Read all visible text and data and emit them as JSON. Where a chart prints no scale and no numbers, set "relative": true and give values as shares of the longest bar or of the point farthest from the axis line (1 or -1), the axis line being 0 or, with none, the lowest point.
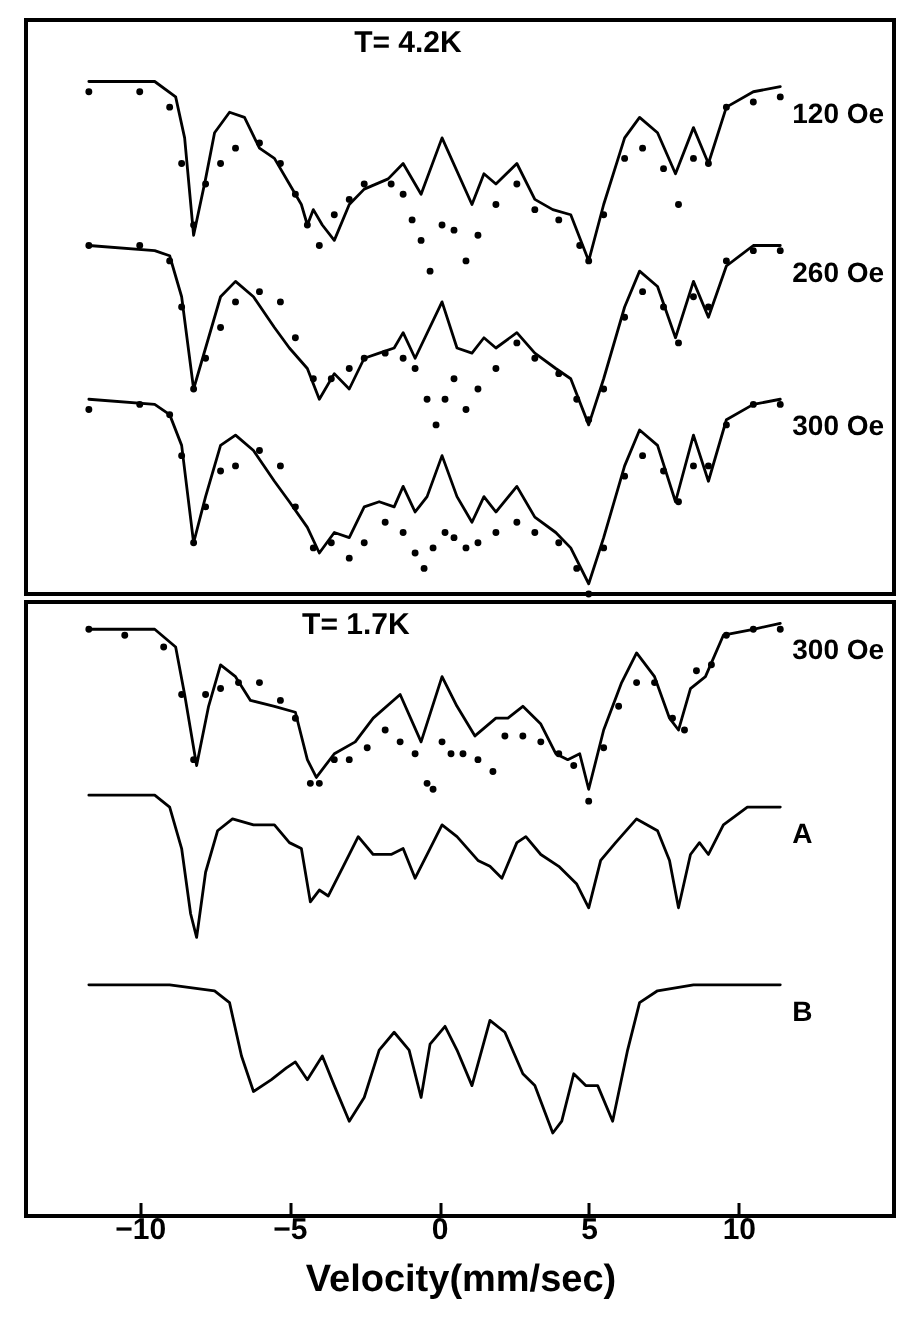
{
  "chart_data": [
    {
      "type": "line",
      "relative": true,
      "xlim": [
        -13.8,
        15.2
      ],
      "tick_labels": false,
      "annotations": [
        "T= 4.2K"
      ],
      "series": [
        {
          "name": "120 Oe",
          "color": "#000000",
          "x": [
            -11.7,
            -9.5,
            -8.8,
            -8.5,
            -8.2,
            -7.8,
            -7.5,
            -7.0,
            -6.5,
            -6.0,
            -5.5,
            -5.0,
            -4.6,
            -4.4,
            -4.2,
            -3.9,
            -3.5,
            -3.0,
            -2.5,
            -1.7,
            -1.2,
            -0.6,
            0.1,
            1.1,
            1.5,
            1.9,
            2.6,
            3.2,
            3.8,
            4.4,
            5.0,
            5.5,
            6.2,
            6.7,
            7.3,
            7.9,
            8.5,
            9.0,
            9.6,
            10.5,
            11.4
          ],
          "values": [
            1.0,
            1.0,
            0.97,
            0.89,
            0.7,
            0.81,
            0.9,
            0.94,
            0.93,
            0.87,
            0.85,
            0.8,
            0.76,
            0.72,
            0.75,
            0.72,
            0.69,
            0.76,
            0.79,
            0.81,
            0.84,
            0.78,
            0.89,
            0.76,
            0.82,
            0.8,
            0.84,
            0.77,
            0.75,
            0.74,
            0.65,
            0.76,
            0.89,
            0.93,
            0.9,
            0.82,
            0.91,
            0.84,
            0.95,
            0.98,
            0.99
          ]
        },
        {
          "type": "scatter",
          "color": "#000000",
          "x": [
            -11.7,
            -10,
            -9,
            -8.6,
            -8.2,
            -7.8,
            -7.3,
            -6.8,
            -6.0,
            -5.3,
            -4.8,
            -4.4,
            -4.0,
            -3.5,
            -3.0,
            -2.5,
            -1.6,
            -1.2,
            -0.9,
            -0.6,
            -0.3,
            0.1,
            0.5,
            0.9,
            1.3,
            1.9,
            2.6,
            3.2,
            4.0,
            4.7,
            5.0,
            5.5,
            6.2,
            6.8,
            7.5,
            8.0,
            8.5,
            9.0,
            9.6,
            10.5,
            11.4
          ],
          "values": [
            0.98,
            0.98,
            0.95,
            0.84,
            0.72,
            0.8,
            0.84,
            0.87,
            0.88,
            0.84,
            0.78,
            0.72,
            0.68,
            0.74,
            0.77,
            0.8,
            0.8,
            0.78,
            0.73,
            0.69,
            0.63,
            0.72,
            0.71,
            0.65,
            0.7,
            0.76,
            0.8,
            0.75,
            0.73,
            0.68,
            0.65,
            0.74,
            0.85,
            0.87,
            0.83,
            0.76,
            0.85,
            0.84,
            0.95,
            0.96,
            0.97
          ]
        },
        {
          "name": "260 Oe",
          "color": "#000000",
          "x": [
            -11.7,
            -9.5,
            -9,
            -8.6,
            -8.2,
            -7.8,
            -7.3,
            -6.8,
            -6.2,
            -5.5,
            -5.0,
            -4.4,
            -4.0,
            -3.5,
            -3.0,
            -2.5,
            -2.0,
            -1.5,
            -1.2,
            -0.8,
            0.1,
            0.6,
            1.1,
            1.5,
            1.9,
            2.6,
            3.2,
            3.9,
            4.4,
            5.0,
            5.5,
            6.2,
            6.7,
            7.3,
            7.9,
            8.5,
            9.0,
            9.6,
            10.5,
            11.4
          ],
          "values": [
            0.68,
            0.67,
            0.66,
            0.58,
            0.4,
            0.48,
            0.58,
            0.61,
            0.58,
            0.52,
            0.48,
            0.44,
            0.38,
            0.43,
            0.4,
            0.46,
            0.47,
            0.48,
            0.51,
            0.46,
            0.57,
            0.48,
            0.47,
            0.5,
            0.48,
            0.51,
            0.47,
            0.44,
            0.42,
            0.33,
            0.42,
            0.56,
            0.63,
            0.6,
            0.5,
            0.61,
            0.54,
            0.64,
            0.68,
            0.68
          ]
        },
        {
          "type": "scatter",
          "color": "#000000",
          "x": [
            -11.7,
            -10,
            -9,
            -8.6,
            -8.2,
            -7.8,
            -7.3,
            -6.8,
            -6.0,
            -5.3,
            -4.8,
            -4.2,
            -3.6,
            -3.0,
            -2.5,
            -1.8,
            -1.2,
            -0.8,
            -0.4,
            -0.1,
            0.2,
            0.5,
            0.9,
            1.3,
            1.9,
            2.6,
            3.2,
            4.0,
            4.6,
            5.0,
            5.5,
            6.2,
            6.8,
            7.5,
            8.0,
            8.5,
            9.0,
            9.6,
            10.5,
            11.4
          ],
          "values": [
            0.68,
            0.68,
            0.65,
            0.56,
            0.4,
            0.46,
            0.52,
            0.57,
            0.59,
            0.57,
            0.5,
            0.42,
            0.42,
            0.44,
            0.46,
            0.47,
            0.46,
            0.44,
            0.38,
            0.33,
            0.38,
            0.42,
            0.36,
            0.4,
            0.44,
            0.49,
            0.46,
            0.43,
            0.38,
            0.34,
            0.4,
            0.54,
            0.59,
            0.56,
            0.49,
            0.58,
            0.56,
            0.65,
            0.67,
            0.67
          ]
        },
        {
          "name": "300 Oe",
          "color": "#000000",
          "x": [
            -11.7,
            -9.5,
            -9,
            -8.6,
            -8.2,
            -7.8,
            -7.3,
            -6.8,
            -6.2,
            -5.5,
            -5.0,
            -4.4,
            -4.0,
            -3.5,
            -3.0,
            -2.5,
            -2.0,
            -1.5,
            -1.2,
            -0.8,
            -0.4,
            0.1,
            0.6,
            1.1,
            1.5,
            1.9,
            2.6,
            3.2,
            3.9,
            4.4,
            5.0,
            5.5,
            6.2,
            6.7,
            7.3,
            7.9,
            8.5,
            9.0,
            9.6,
            10.5,
            11.4
          ],
          "values": [
            0.38,
            0.37,
            0.35,
            0.29,
            0.1,
            0.19,
            0.29,
            0.31,
            0.28,
            0.22,
            0.18,
            0.13,
            0.08,
            0.12,
            0.11,
            0.17,
            0.18,
            0.17,
            0.21,
            0.16,
            0.19,
            0.27,
            0.19,
            0.14,
            0.19,
            0.16,
            0.21,
            0.15,
            0.12,
            0.09,
            0.02,
            0.11,
            0.25,
            0.32,
            0.29,
            0.18,
            0.31,
            0.22,
            0.34,
            0.37,
            0.38
          ]
        },
        {
          "type": "scatter",
          "color": "#000000",
          "x": [
            -11.7,
            -10,
            -9,
            -8.6,
            -8.2,
            -7.8,
            -7.3,
            -6.8,
            -6.0,
            -5.3,
            -4.8,
            -4.2,
            -3.6,
            -3.0,
            -2.5,
            -1.8,
            -1.2,
            -0.8,
            -0.5,
            -0.2,
            0.2,
            0.5,
            0.9,
            1.3,
            1.9,
            2.6,
            3.2,
            4.0,
            4.6,
            5.0,
            5.5,
            6.2,
            6.8,
            7.5,
            8.0,
            8.5,
            9.0,
            9.6,
            10.5,
            11.4
          ],
          "values": [
            0.36,
            0.37,
            0.35,
            0.27,
            0.1,
            0.17,
            0.24,
            0.25,
            0.28,
            0.25,
            0.17,
            0.09,
            0.1,
            0.07,
            0.1,
            0.14,
            0.12,
            0.08,
            0.05,
            0.09,
            0.12,
            0.11,
            0.09,
            0.1,
            0.12,
            0.14,
            0.12,
            0.1,
            0.05,
            0.0,
            0.09,
            0.23,
            0.27,
            0.24,
            0.18,
            0.25,
            0.25,
            0.33,
            0.37,
            0.37
          ]
        }
      ]
    },
    {
      "type": "line",
      "relative": true,
      "xlim": [
        -13.8,
        15.2
      ],
      "xticks": [
        -10,
        -5,
        0,
        5,
        10
      ],
      "xlabel": "Velocity(mm/sec)",
      "tick_labels": "x",
      "annotations": [
        "T= 1.7K"
      ],
      "series": [
        {
          "name": "300 Oe",
          "color": "#000000",
          "x": [
            -11.7,
            -9.5,
            -8.8,
            -8.5,
            -8.1,
            -7.7,
            -7.3,
            -6.8,
            -6.3,
            -5.5,
            -4.8,
            -4.4,
            -4.1,
            -3.5,
            -2.8,
            -2.2,
            -1.3,
            -0.6,
            0.1,
            0.6,
            1.2,
            1.9,
            2.3,
            2.8,
            3.4,
            3.9,
            4.3,
            4.7,
            5.0,
            5.5,
            6.1,
            6.6,
            7.2,
            7.7,
            8.0,
            8.4,
            8.9,
            9.5,
            10.5,
            11.4
          ],
          "values": [
            0.99,
            0.99,
            0.96,
            0.88,
            0.76,
            0.86,
            0.93,
            0.91,
            0.87,
            0.86,
            0.85,
            0.77,
            0.74,
            0.78,
            0.8,
            0.84,
            0.88,
            0.8,
            0.91,
            0.86,
            0.81,
            0.84,
            0.84,
            0.86,
            0.83,
            0.78,
            0.77,
            0.78,
            0.72,
            0.82,
            0.9,
            0.95,
            0.91,
            0.84,
            0.82,
            0.89,
            0.91,
            0.98,
            0.99,
            1.0
          ]
        },
        {
          "type": "scatter",
          "color": "#000000",
          "x": [
            -11.7,
            -10.5,
            -9.2,
            -8.6,
            -8.2,
            -7.8,
            -7.3,
            -6.7,
            -6.0,
            -5.3,
            -4.8,
            -4.3,
            -4.0,
            -3.5,
            -3.0,
            -2.4,
            -1.8,
            -1.3,
            -0.8,
            -0.4,
            -0.2,
            0.1,
            0.4,
            0.8,
            1.3,
            1.8,
            2.2,
            2.8,
            3.4,
            4.0,
            4.5,
            5.0,
            5.5,
            6.0,
            6.6,
            7.2,
            7.8,
            8.2,
            8.6,
            9.1,
            9.6,
            10.5,
            11.4
          ],
          "values": [
            0.99,
            0.98,
            0.96,
            0.88,
            0.77,
            0.88,
            0.89,
            0.9,
            0.9,
            0.87,
            0.84,
            0.73,
            0.73,
            0.77,
            0.77,
            0.79,
            0.82,
            0.8,
            0.78,
            0.73,
            0.72,
            0.8,
            0.78,
            0.78,
            0.77,
            0.75,
            0.81,
            0.81,
            0.8,
            0.78,
            0.76,
            0.7,
            0.79,
            0.86,
            0.9,
            0.9,
            0.84,
            0.82,
            0.92,
            0.93,
            0.98,
            0.99,
            0.99
          ]
        },
        {
          "name": "A",
          "color": "#000000",
          "x": [
            -11.7,
            -9.5,
            -9.0,
            -8.6,
            -8.3,
            -8.1,
            -7.8,
            -7.4,
            -6.9,
            -6.2,
            -5.5,
            -5.0,
            -4.6,
            -4.3,
            -4.0,
            -3.7,
            -3.2,
            -2.7,
            -2.2,
            -1.6,
            -1.2,
            -0.8,
            -0.3,
            0.1,
            0.6,
            1.3,
            1.7,
            2.1,
            2.6,
            2.9,
            3.4,
            4.0,
            4.6,
            5.0,
            5.4,
            5.9,
            6.6,
            7.3,
            7.7,
            8.0,
            8.4,
            8.7,
            9.0,
            9.5,
            10.3,
            11.4
          ],
          "values": [
            0.71,
            0.71,
            0.69,
            0.62,
            0.51,
            0.47,
            0.58,
            0.65,
            0.67,
            0.66,
            0.66,
            0.63,
            0.62,
            0.53,
            0.55,
            0.54,
            0.59,
            0.64,
            0.61,
            0.61,
            0.62,
            0.57,
            0.62,
            0.66,
            0.64,
            0.6,
            0.59,
            0.57,
            0.63,
            0.64,
            0.61,
            0.59,
            0.56,
            0.52,
            0.6,
            0.63,
            0.67,
            0.65,
            0.6,
            0.52,
            0.61,
            0.63,
            0.61,
            0.66,
            0.69,
            0.69
          ]
        },
        {
          "name": "B",
          "color": "#000000",
          "x": [
            -11.7,
            -9,
            -7.5,
            -7.0,
            -6.6,
            -6.2,
            -5.6,
            -5.1,
            -4.8,
            -4.4,
            -3.9,
            -3.5,
            -3.0,
            -2.5,
            -2.0,
            -1.5,
            -1.0,
            -0.6,
            -0.3,
            0.2,
            0.6,
            1.1,
            1.7,
            2.2,
            2.8,
            3.2,
            3.8,
            4.1,
            4.5,
            4.9,
            5.3,
            5.8,
            6.3,
            6.7,
            7.3,
            8.5,
            11.4
          ],
          "values": [
            0.39,
            0.39,
            0.38,
            0.36,
            0.27,
            0.21,
            0.23,
            0.25,
            0.26,
            0.23,
            0.27,
            0.22,
            0.16,
            0.2,
            0.28,
            0.31,
            0.28,
            0.2,
            0.29,
            0.32,
            0.28,
            0.22,
            0.33,
            0.31,
            0.24,
            0.22,
            0.14,
            0.16,
            0.24,
            0.22,
            0.22,
            0.16,
            0.28,
            0.36,
            0.38,
            0.39,
            0.39
          ]
        }
      ]
    }
  ]
}
